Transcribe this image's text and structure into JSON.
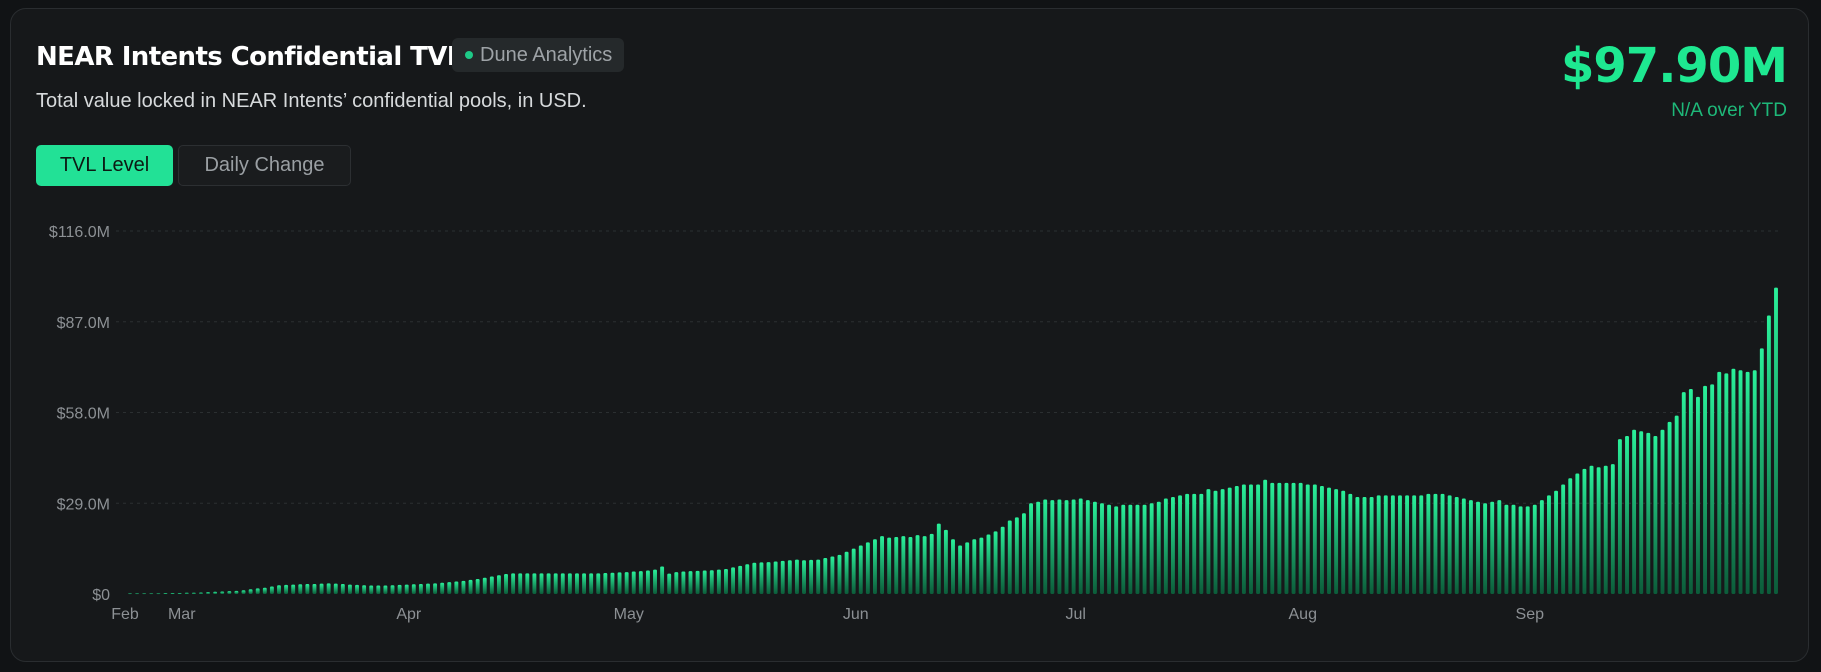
{
  "header": {
    "title": "NEAR Intents Confidential TVL",
    "badge": "Dune Analytics",
    "subtitle": "Total value locked in NEAR Intents’ confidential pools, in USD.",
    "value": "$97.90M",
    "change": "N/A over YTD"
  },
  "tabs": [
    {
      "label": "TVL Level",
      "active": true
    },
    {
      "label": "Daily Change",
      "active": false
    }
  ],
  "colors": {
    "accent": "#22e196",
    "bar_top": "#2af09a",
    "bar_bottom": "#0c5c3a"
  },
  "chart_data": {
    "type": "bar",
    "ylim": [
      0,
      116
    ],
    "y_ticks": [
      "$116.0M",
      "$87.0M",
      "$58.0M",
      "$29.0M",
      "$0"
    ],
    "y_tick_values": [
      116,
      87,
      58,
      29,
      0
    ],
    "x_ticks": [
      "Feb",
      "Mar",
      "Apr",
      "May",
      "Jun",
      "Jul",
      "Aug",
      "Sep"
    ],
    "x_tick_days": [
      0,
      8,
      40,
      71,
      103,
      134,
      166,
      198
    ],
    "grid": true,
    "legend": "none",
    "units": "USD millions",
    "values": [
      0.2,
      0.2,
      0.2,
      0.2,
      0.2,
      0.3,
      0.3,
      0.3,
      0.4,
      0.4,
      0.5,
      0.6,
      0.7,
      0.8,
      0.9,
      1.0,
      1.2,
      1.5,
      1.8,
      2.0,
      2.4,
      2.8,
      2.9,
      3.0,
      3.1,
      3.2,
      3.2,
      3.3,
      3.4,
      3.3,
      3.2,
      3.0,
      2.9,
      2.8,
      2.7,
      2.7,
      2.7,
      2.8,
      2.9,
      3.0,
      3.1,
      3.2,
      3.3,
      3.4,
      3.6,
      3.8,
      4.0,
      4.2,
      4.5,
      4.8,
      5.2,
      5.6,
      6.0,
      6.4,
      6.6,
      6.6,
      6.6,
      6.6,
      6.6,
      6.6,
      6.6,
      6.6,
      6.6,
      6.6,
      6.6,
      6.6,
      6.6,
      6.7,
      6.8,
      6.9,
      7.0,
      7.2,
      7.3,
      7.5,
      7.8,
      8.8,
      6.5,
      7.0,
      7.2,
      7.3,
      7.4,
      7.5,
      7.6,
      7.8,
      8.0,
      8.5,
      9.0,
      9.5,
      10.0,
      10.1,
      10.2,
      10.4,
      10.6,
      10.8,
      11.0,
      10.8,
      10.9,
      11.0,
      11.5,
      12.0,
      12.5,
      13.5,
      14.5,
      15.5,
      16.5,
      17.5,
      18.5,
      18.0,
      18.2,
      18.5,
      18.2,
      18.8,
      18.5,
      19.2,
      22.5,
      20.5,
      17.5,
      15.5,
      16.5,
      17.5,
      18.0,
      19.0,
      20.0,
      21.5,
      23.5,
      24.5,
      25.8,
      29.0,
      29.5,
      30.2,
      30.0,
      30.2,
      30.0,
      30.2,
      30.5,
      30.0,
      29.5,
      29.0,
      28.5,
      28.0,
      28.5,
      28.5,
      28.5,
      28.5,
      29.0,
      29.5,
      30.5,
      31.0,
      31.5,
      32.0,
      32.0,
      32.0,
      33.5,
      33.0,
      33.5,
      34.0,
      34.5,
      35.0,
      35.0,
      35.0,
      36.5,
      35.5,
      35.5,
      35.5,
      35.5,
      35.5,
      35.0,
      35.0,
      34.5,
      34.0,
      33.5,
      33.0,
      32.0,
      31.0,
      31.0,
      31.0,
      31.5,
      31.5,
      31.5,
      31.5,
      31.5,
      31.5,
      31.5,
      32.0,
      32.0,
      32.0,
      31.5,
      31.0,
      30.5,
      30.0,
      29.5,
      29.0,
      29.5,
      30.0,
      28.5,
      28.5,
      28.0,
      28.0,
      28.5,
      30.0,
      31.5,
      33.0,
      35.0,
      37.0,
      38.5,
      40.0,
      41.0,
      40.5,
      41.0,
      41.5,
      49.5,
      50.5,
      52.5,
      52.0,
      51.5,
      50.5,
      52.5,
      55.0,
      57.0,
      64.5,
      65.5,
      63.0,
      66.5,
      67.0,
      71.0,
      70.5,
      72.0,
      71.5,
      71.0,
      71.5,
      78.5,
      89.0,
      97.9
    ]
  }
}
